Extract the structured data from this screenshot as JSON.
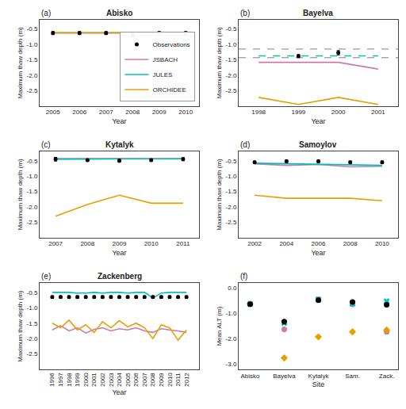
{
  "chart_data": [
    {
      "type": "line",
      "title": "Abisko",
      "annotations": [
        "(a)"
      ],
      "x_label": "Year",
      "y_label": "Maximum thaw depth (m)",
      "x": [
        2005,
        2006,
        2007,
        2008,
        2009,
        2010
      ],
      "series": [
        {
          "name": "Observations",
          "type": "scatter",
          "color": "#000000",
          "marker": "circle",
          "values": [
            -0.63,
            -0.63,
            -0.63,
            -0.7,
            -0.63,
            -0.63
          ],
          "errors": [
            0.05,
            0.05,
            0.05,
            0.05,
            0.05,
            0.05
          ]
        },
        {
          "name": "JSBACH",
          "color": "#CC79A7",
          "line_style": "solid",
          "values": [
            -0.63,
            -0.63,
            -0.63,
            -0.63,
            -0.63,
            -0.63
          ]
        },
        {
          "name": "JULES",
          "color": "#00BFBF",
          "line_style": "solid",
          "values": [
            -0.62,
            -0.62,
            -0.62,
            -0.62,
            -0.62,
            -0.62
          ]
        },
        {
          "name": "ORCHIDEE",
          "color": "#E69F00",
          "line_style": "solid",
          "values": [
            -0.62,
            -0.62,
            -0.62,
            -0.62,
            -0.62,
            -0.62
          ]
        }
      ],
      "xlim": [
        2004.5,
        2010.5
      ],
      "ylim": [
        -3.0,
        -0.2
      ],
      "xticks": [
        2005,
        2006,
        2007,
        2008,
        2009,
        2010
      ],
      "yticks": [
        -0.5,
        {
          "value": -1.0,
          "label": "-1.0"
        },
        -1.5,
        {
          "value": -2.0,
          "label": "-2.0"
        },
        -2.5
      ],
      "grid": false,
      "legend": "lower right"
    },
    {
      "type": "line",
      "title": "Bayelva",
      "annotations": [
        "(b)"
      ],
      "x_label": "Year",
      "y_label": "Maximum thaw depth (m)",
      "x": [
        1998,
        1999,
        2000,
        2001
      ],
      "series": [
        {
          "name": "Observations",
          "type": "scatter",
          "color": "#000000",
          "marker": "circle",
          "values": [
            null,
            -1.38,
            -1.27,
            null
          ],
          "errors": [
            null,
            0.05,
            0.07,
            null
          ]
        },
        {
          "name": "JSBACH",
          "color": "#CC79A7",
          "line_style": "solid",
          "values": [
            -1.58,
            -1.58,
            -1.58,
            -1.8
          ]
        },
        {
          "name": "JULES",
          "color": "#00BFBF",
          "line_style": "dashed",
          "values": [
            -1.37,
            -1.37,
            -1.37,
            -1.37
          ]
        },
        {
          "name": "ORCHIDEE",
          "color": "#E69F00",
          "line_style": "solid",
          "values": [
            -2.72,
            -2.95,
            -2.72,
            -2.95
          ]
        }
      ],
      "hlines": [
        -1.15,
        -1.43
      ],
      "xlim": [
        1997.5,
        2001.5
      ],
      "ylim": [
        -3.0,
        -0.2
      ],
      "xticks": [
        1998,
        1999,
        2000,
        2001
      ],
      "yticks": [
        -0.5,
        {
          "value": -1.0,
          "label": "-1.0"
        },
        -1.5,
        {
          "value": -2.0,
          "label": "-2.0"
        },
        -2.5
      ],
      "grid": false
    },
    {
      "type": "line",
      "title": "Kytalyk",
      "annotations": [
        "(c)"
      ],
      "x_label": "Year",
      "y_label": "Maximum thaw depth (m)",
      "x": [
        2007,
        2008,
        2009,
        2010,
        2011
      ],
      "series": [
        {
          "name": "Observations",
          "type": "scatter",
          "color": "#000000",
          "marker": "circle",
          "values": [
            -0.45,
            -0.48,
            -0.5,
            -0.48,
            -0.45
          ],
          "errors": [
            0.06,
            0.04,
            0.05,
            0.04,
            0.05
          ]
        },
        {
          "name": "JSBACH",
          "color": "#CC79A7",
          "line_style": "solid",
          "values": [
            -0.43,
            -0.43,
            -0.43,
            -0.43,
            -0.43
          ]
        },
        {
          "name": "JULES",
          "color": "#00BFBF",
          "line_style": "solid",
          "values": [
            -0.45,
            -0.44,
            -0.44,
            -0.44,
            -0.44
          ]
        },
        {
          "name": "ORCHIDEE",
          "color": "#E69F00",
          "line_style": "solid",
          "values": [
            -2.3,
            -1.92,
            -1.62,
            -1.88,
            -1.88
          ]
        }
      ],
      "xlim": [
        2006.5,
        2011.5
      ],
      "ylim": [
        -3.0,
        -0.2
      ],
      "xticks": [
        2007,
        2008,
        2009,
        2010,
        2011
      ],
      "yticks": [
        -0.5,
        {
          "value": -1.0,
          "label": "-1.0"
        },
        -1.5,
        {
          "value": -2.0,
          "label": "-2.0"
        },
        -2.5
      ],
      "grid": false
    },
    {
      "type": "line",
      "title": "Samoylov",
      "annotations": [
        "(d)"
      ],
      "x_label": "Year",
      "y_label": "Maximum thaw depth (m)",
      "x": [
        2002,
        2004,
        2006,
        2008,
        2010
      ],
      "series": [
        {
          "name": "Observations",
          "type": "scatter",
          "color": "#000000",
          "marker": "circle",
          "values": [
            -0.55,
            -0.52,
            -0.52,
            -0.55,
            -0.55
          ],
          "errors": [
            0.04,
            0.04,
            0.04,
            0.04,
            0.04
          ]
        },
        {
          "name": "JSBACH",
          "color": "#CC79A7",
          "line_style": "solid",
          "values": [
            -0.6,
            -0.65,
            -0.62,
            -0.7,
            -0.68
          ]
        },
        {
          "name": "JULES",
          "color": "#00BFBF",
          "line_style": "solid",
          "values": [
            -0.58,
            -0.6,
            -0.62,
            -0.63,
            -0.65
          ]
        },
        {
          "name": "ORCHIDEE",
          "color": "#E69F00",
          "line_style": "solid",
          "values": [
            -1.62,
            -1.72,
            -1.72,
            -1.72,
            -1.8
          ]
        }
      ],
      "xlim": [
        2001.0,
        2011.0
      ],
      "ylim": [
        -3.0,
        -0.2
      ],
      "xticks": [
        2002,
        2004,
        2006,
        2008,
        2010
      ],
      "yticks": [
        -0.5,
        {
          "value": -1.0,
          "label": "-1.0"
        },
        -1.5,
        {
          "value": -2.0,
          "label": "-2.0"
        },
        -2.5
      ],
      "grid": false
    },
    {
      "type": "line",
      "title": "Zackenberg",
      "annotations": [
        "(e)"
      ],
      "x_label": "Year",
      "y_label": "Maximum thaw depth (m)",
      "x": [
        1996,
        1997,
        1998,
        1999,
        2000,
        2001,
        2002,
        2003,
        2004,
        2005,
        2006,
        2007,
        2008,
        2009,
        2010,
        2011,
        2012
      ],
      "series": [
        {
          "name": "Observations",
          "type": "scatter",
          "color": "#000000",
          "marker": "circle",
          "values": [
            -0.65,
            -0.65,
            -0.65,
            -0.65,
            -0.65,
            -0.65,
            -0.65,
            -0.65,
            -0.65,
            -0.65,
            -0.65,
            -0.65,
            -0.65,
            -0.65,
            -0.65,
            -0.65,
            -0.65
          ],
          "errors": [
            0.04,
            0.04,
            0.04,
            0.04,
            0.04,
            0.04,
            0.04,
            0.04,
            0.04,
            0.04,
            0.04,
            0.04,
            0.04,
            0.04,
            0.04,
            0.04,
            0.04
          ]
        },
        {
          "name": "JSBACH",
          "color": "#CC79A7",
          "line_style": "solid",
          "values": [
            -1.72,
            -1.58,
            -1.75,
            -1.65,
            -1.82,
            -1.7,
            -1.65,
            -1.75,
            -1.68,
            -1.72,
            -1.65,
            -1.75,
            -1.8,
            -1.68,
            -1.72,
            -1.75,
            -1.8
          ]
        },
        {
          "name": "JULES",
          "color": "#00BFBF",
          "line_style": "solid",
          "values": [
            -0.5,
            -0.5,
            -0.5,
            -0.52,
            -0.52,
            -0.5,
            -0.52,
            -0.5,
            -0.5,
            -0.52,
            -0.5,
            -0.5,
            -0.68,
            -0.52,
            -0.5,
            -0.5,
            -0.5
          ]
        },
        {
          "name": "ORCHIDEE",
          "color": "#E69F00",
          "line_style": "solid",
          "values": [
            -1.5,
            -1.65,
            -1.4,
            -1.72,
            -1.55,
            -1.8,
            -1.45,
            -1.65,
            -1.42,
            -1.62,
            -1.5,
            -1.65,
            -2.0,
            -1.55,
            -1.65,
            -2.05,
            -1.72
          ]
        }
      ],
      "xlim": [
        1994.5,
        2013.5
      ],
      "ylim": [
        -3.0,
        -0.2
      ],
      "xticks": [
        1996,
        1997,
        1998,
        1999,
        2000,
        2001,
        2002,
        2003,
        2004,
        2005,
        2006,
        2007,
        2008,
        2009,
        2010,
        2011,
        2012
      ],
      "yticks": [
        -0.5,
        {
          "value": -1.0,
          "label": "-1.0"
        },
        -1.5,
        {
          "value": -2.0,
          "label": "-2.0"
        },
        -2.5
      ],
      "grid": false
    },
    {
      "type": "scatter",
      "annotations": [
        "(f)"
      ],
      "x_label": "Site",
      "y_label": "Mean ALT (m)",
      "categories": [
        "Abisko",
        "Bayelva",
        "Kytalyk",
        "Sam.",
        "Zack."
      ],
      "series": [
        {
          "name": "JSBACH",
          "color": "#CC79A7",
          "marker": "circle",
          "values": [
            -0.63,
            -1.62,
            -0.43,
            -0.64,
            -1.72
          ]
        },
        {
          "name": "JULES",
          "color": "#00BFBF",
          "marker": "x",
          "values": [
            -0.62,
            -1.37,
            -0.44,
            -0.61,
            -0.52
          ]
        },
        {
          "name": "ORCHIDEE",
          "color": "#E69F00",
          "marker": "diamond",
          "values": [
            -0.62,
            -2.75,
            -1.92,
            -1.72,
            -1.65
          ]
        },
        {
          "name": "Observations",
          "color": "#000000",
          "marker": "circle",
          "values": [
            -0.63,
            -1.32,
            -0.47,
            -0.54,
            -0.65
          ],
          "errors": [
            0.05,
            0.06,
            0.05,
            0.04,
            0.04
          ]
        }
      ],
      "ylim": [
        -3.2,
        0.2
      ],
      "yticks": [
        {
          "value": 0.0,
          "label": "0.0"
        },
        {
          "value": -1.0,
          "label": "-1.0"
        },
        {
          "value": -2.0,
          "label": "-2.0"
        },
        {
          "value": -3.0,
          "label": "-3.0"
        }
      ],
      "grid": false
    }
  ]
}
